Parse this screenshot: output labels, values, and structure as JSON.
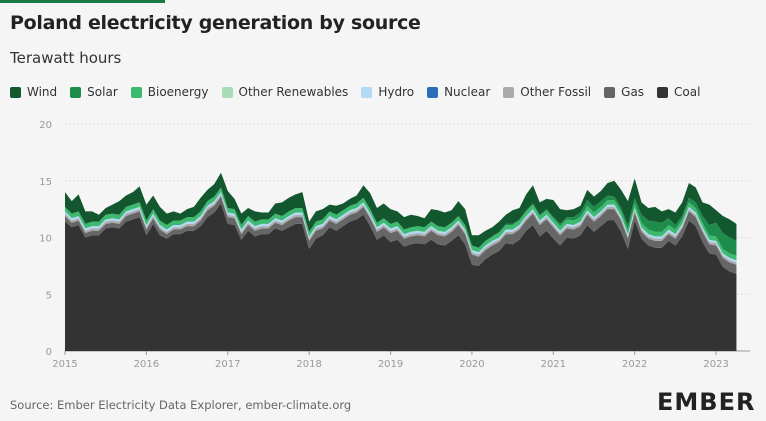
{
  "title": "Poland electricity generation by source",
  "subtitle": "Terawatt hours",
  "source": "Source: Ember Electricity Data Explorer, ember-climate.org",
  "logo": "EMBER",
  "chart_data": {
    "type": "area",
    "stacked": true,
    "title": "Poland electricity generation by source",
    "ylabel": "Terawatt hours",
    "ylim": [
      0,
      20
    ],
    "yticks": [
      0,
      5,
      10,
      15,
      20
    ],
    "xlim": [
      "2015-01",
      "2023-06"
    ],
    "xticks": [
      "2015",
      "2016",
      "2017",
      "2018",
      "2019",
      "2020",
      "2021",
      "2022",
      "2023"
    ],
    "grid": "horizontal",
    "legend_position": "top-left",
    "x_start": "2015-01",
    "series": [
      {
        "name": "Coal",
        "color": "#333333",
        "values": [
          11.4,
          10.9,
          11.1,
          10.0,
          10.2,
          10.2,
          10.8,
          10.9,
          10.8,
          11.4,
          11.6,
          11.8,
          10.2,
          11.2,
          10.2,
          9.9,
          10.3,
          10.3,
          10.6,
          10.6,
          11.0,
          11.8,
          12.2,
          13.0,
          11.2,
          11.1,
          9.8,
          10.6,
          10.1,
          10.3,
          10.3,
          10.8,
          10.6,
          10.9,
          11.2,
          11.2,
          9.0,
          9.9,
          10.2,
          10.9,
          10.6,
          11.0,
          11.4,
          11.6,
          12.0,
          11.0,
          9.8,
          10.2,
          9.6,
          9.8,
          9.2,
          9.4,
          9.5,
          9.4,
          9.8,
          9.4,
          9.3,
          9.7,
          10.2,
          9.4,
          7.6,
          7.5,
          8.1,
          8.5,
          8.8,
          9.5,
          9.4,
          9.8,
          10.6,
          11.1,
          10.1,
          10.6,
          9.9,
          9.3,
          10.0,
          9.9,
          10.2,
          11.1,
          10.5,
          11.0,
          11.5,
          11.5,
          10.5,
          9.0,
          11.5,
          9.9,
          9.3,
          9.1,
          9.1,
          9.7,
          9.3,
          10.1,
          11.5,
          11.0,
          9.6,
          8.6,
          8.5,
          7.4,
          7.0,
          6.8
        ]
      },
      {
        "name": "Gas",
        "color": "#666666",
        "values": [
          0.5,
          0.4,
          0.4,
          0.4,
          0.4,
          0.4,
          0.4,
          0.4,
          0.4,
          0.5,
          0.5,
          0.5,
          0.5,
          0.5,
          0.5,
          0.4,
          0.4,
          0.4,
          0.4,
          0.4,
          0.5,
          0.6,
          0.6,
          0.6,
          0.6,
          0.6,
          0.5,
          0.5,
          0.5,
          0.5,
          0.5,
          0.5,
          0.5,
          0.6,
          0.6,
          0.6,
          0.7,
          0.7,
          0.6,
          0.6,
          0.6,
          0.6,
          0.6,
          0.6,
          0.7,
          0.7,
          0.7,
          0.7,
          0.8,
          0.8,
          0.7,
          0.7,
          0.7,
          0.7,
          0.8,
          0.8,
          0.8,
          0.8,
          0.9,
          0.9,
          0.9,
          0.8,
          0.8,
          0.8,
          0.8,
          0.8,
          0.9,
          0.9,
          0.9,
          1.0,
          1.0,
          1.0,
          1.0,
          0.9,
          0.8,
          0.8,
          0.8,
          0.9,
          0.9,
          0.9,
          1.0,
          1.0,
          1.0,
          0.9,
          0.7,
          0.6,
          0.6,
          0.6,
          0.6,
          0.6,
          0.6,
          0.7,
          0.8,
          0.8,
          0.9,
          0.8,
          0.8,
          0.8,
          0.8,
          0.8
        ]
      },
      {
        "name": "Other Fossil",
        "color": "#aaaaaa",
        "values": [
          0.2,
          0.2,
          0.2,
          0.2,
          0.2,
          0.2,
          0.2,
          0.2,
          0.2,
          0.2,
          0.2,
          0.2,
          0.2,
          0.2,
          0.2,
          0.2,
          0.2,
          0.2,
          0.2,
          0.2,
          0.2,
          0.2,
          0.2,
          0.2,
          0.2,
          0.2,
          0.2,
          0.2,
          0.2,
          0.2,
          0.2,
          0.2,
          0.2,
          0.2,
          0.2,
          0.2,
          0.2,
          0.2,
          0.2,
          0.2,
          0.2,
          0.2,
          0.2,
          0.2,
          0.2,
          0.2,
          0.2,
          0.2,
          0.2,
          0.2,
          0.2,
          0.2,
          0.2,
          0.2,
          0.2,
          0.2,
          0.2,
          0.2,
          0.2,
          0.2,
          0.2,
          0.2,
          0.2,
          0.2,
          0.2,
          0.2,
          0.2,
          0.2,
          0.2,
          0.2,
          0.2,
          0.2,
          0.2,
          0.2,
          0.2,
          0.2,
          0.2,
          0.2,
          0.2,
          0.2,
          0.2,
          0.2,
          0.2,
          0.2,
          0.2,
          0.2,
          0.2,
          0.2,
          0.2,
          0.2,
          0.2,
          0.2,
          0.2,
          0.2,
          0.2,
          0.2,
          0.2,
          0.2,
          0.2,
          0.2
        ]
      },
      {
        "name": "Nuclear",
        "color": "#2a6ebb",
        "values": [
          0,
          0,
          0,
          0,
          0,
          0,
          0,
          0,
          0,
          0,
          0,
          0,
          0,
          0,
          0,
          0,
          0,
          0,
          0,
          0,
          0,
          0,
          0,
          0,
          0,
          0,
          0,
          0,
          0,
          0,
          0,
          0,
          0,
          0,
          0,
          0,
          0,
          0,
          0,
          0,
          0,
          0,
          0,
          0,
          0,
          0,
          0,
          0,
          0,
          0,
          0,
          0,
          0,
          0,
          0,
          0,
          0,
          0,
          0,
          0,
          0,
          0,
          0,
          0,
          0,
          0,
          0,
          0,
          0,
          0,
          0,
          0,
          0,
          0,
          0,
          0,
          0,
          0,
          0,
          0,
          0,
          0,
          0,
          0,
          0,
          0,
          0,
          0,
          0,
          0,
          0,
          0,
          0,
          0,
          0,
          0,
          0,
          0,
          0,
          0
        ]
      },
      {
        "name": "Hydro",
        "color": "#b3d9f5",
        "values": [
          0.2,
          0.2,
          0.2,
          0.2,
          0.2,
          0.2,
          0.2,
          0.2,
          0.2,
          0.2,
          0.2,
          0.2,
          0.2,
          0.2,
          0.2,
          0.2,
          0.2,
          0.2,
          0.2,
          0.2,
          0.2,
          0.2,
          0.2,
          0.2,
          0.2,
          0.2,
          0.2,
          0.2,
          0.2,
          0.2,
          0.2,
          0.2,
          0.2,
          0.2,
          0.2,
          0.2,
          0.2,
          0.2,
          0.2,
          0.2,
          0.2,
          0.2,
          0.2,
          0.2,
          0.2,
          0.2,
          0.2,
          0.2,
          0.2,
          0.2,
          0.2,
          0.2,
          0.2,
          0.2,
          0.2,
          0.2,
          0.2,
          0.2,
          0.2,
          0.2,
          0.2,
          0.2,
          0.2,
          0.2,
          0.2,
          0.2,
          0.2,
          0.2,
          0.2,
          0.2,
          0.2,
          0.2,
          0.2,
          0.2,
          0.2,
          0.2,
          0.2,
          0.2,
          0.2,
          0.2,
          0.2,
          0.2,
          0.2,
          0.2,
          0.2,
          0.2,
          0.2,
          0.2,
          0.2,
          0.2,
          0.2,
          0.2,
          0.2,
          0.2,
          0.2,
          0.2,
          0.2,
          0.2,
          0.2,
          0.2
        ]
      },
      {
        "name": "Other Renewables",
        "color": "#a8dcb9",
        "values": [
          0,
          0,
          0,
          0,
          0,
          0,
          0,
          0,
          0,
          0,
          0,
          0,
          0,
          0,
          0,
          0,
          0,
          0,
          0,
          0,
          0,
          0,
          0,
          0,
          0,
          0,
          0,
          0,
          0,
          0,
          0,
          0,
          0,
          0,
          0,
          0,
          0,
          0,
          0,
          0,
          0,
          0,
          0,
          0,
          0,
          0,
          0,
          0,
          0,
          0,
          0,
          0,
          0,
          0,
          0,
          0,
          0,
          0,
          0,
          0,
          0,
          0,
          0,
          0,
          0,
          0,
          0,
          0,
          0,
          0,
          0,
          0,
          0,
          0,
          0,
          0,
          0,
          0,
          0,
          0,
          0,
          0,
          0,
          0,
          0,
          0,
          0,
          0,
          0,
          0,
          0,
          0,
          0,
          0,
          0,
          0,
          0,
          0,
          0,
          0
        ]
      },
      {
        "name": "Bioenergy",
        "color": "#3dba6f",
        "values": [
          0.4,
          0.4,
          0.4,
          0.4,
          0.4,
          0.4,
          0.4,
          0.4,
          0.4,
          0.4,
          0.4,
          0.4,
          0.4,
          0.4,
          0.4,
          0.4,
          0.4,
          0.4,
          0.4,
          0.4,
          0.4,
          0.4,
          0.4,
          0.4,
          0.4,
          0.4,
          0.4,
          0.4,
          0.4,
          0.4,
          0.4,
          0.4,
          0.4,
          0.4,
          0.4,
          0.4,
          0.4,
          0.4,
          0.4,
          0.4,
          0.4,
          0.4,
          0.4,
          0.4,
          0.4,
          0.4,
          0.4,
          0.4,
          0.4,
          0.4,
          0.4,
          0.4,
          0.4,
          0.4,
          0.4,
          0.4,
          0.4,
          0.4,
          0.4,
          0.4,
          0.4,
          0.4,
          0.4,
          0.4,
          0.4,
          0.4,
          0.4,
          0.4,
          0.4,
          0.4,
          0.4,
          0.4,
          0.4,
          0.4,
          0.4,
          0.4,
          0.4,
          0.4,
          0.4,
          0.4,
          0.4,
          0.4,
          0.4,
          0.4,
          0.4,
          0.4,
          0.4,
          0.4,
          0.4,
          0.4,
          0.4,
          0.4,
          0.4,
          0.4,
          0.4,
          0.4,
          0.4,
          0.4,
          0.4,
          0.4
        ]
      },
      {
        "name": "Solar",
        "color": "#1e8c4a",
        "values": [
          0,
          0,
          0,
          0,
          0,
          0,
          0,
          0,
          0,
          0,
          0,
          0,
          0,
          0,
          0,
          0,
          0,
          0,
          0,
          0,
          0,
          0,
          0,
          0,
          0,
          0,
          0,
          0,
          0,
          0,
          0,
          0,
          0,
          0,
          0,
          0,
          0,
          0,
          0,
          0,
          0,
          0,
          0,
          0,
          0,
          0,
          0,
          0,
          0,
          0,
          0,
          0,
          0,
          0,
          0,
          0,
          0,
          0,
          0,
          0,
          0,
          0,
          0,
          0,
          0.1,
          0.1,
          0.1,
          0.1,
          0.1,
          0.1,
          0.1,
          0.1,
          0.1,
          0.2,
          0.2,
          0.3,
          0.4,
          0.5,
          0.5,
          0.5,
          0.4,
          0.3,
          0.3,
          0.4,
          0.5,
          0.7,
          0.8,
          0.9,
          0.8,
          0.6,
          0.4,
          0.3,
          0.4,
          0.5,
          0.6,
          0.9,
          1.2,
          1.4,
          1.4,
          1.3
        ]
      },
      {
        "name": "Wind",
        "color": "#13572f",
        "values": [
          1.3,
          1.1,
          1.5,
          1.1,
          0.9,
          0.6,
          0.6,
          0.8,
          1.2,
          1.0,
          1.1,
          1.4,
          1.4,
          1.2,
          1.2,
          1.0,
          0.8,
          0.6,
          0.7,
          0.9,
          1.2,
          1.0,
          1.1,
          1.3,
          1.5,
          0.9,
          1.0,
          0.7,
          0.9,
          0.6,
          0.6,
          0.9,
          1.2,
          1.2,
          1.2,
          1.4,
          0.9,
          0.9,
          0.9,
          0.6,
          0.8,
          0.6,
          0.6,
          0.7,
          1.1,
          1.4,
          1.3,
          1.3,
          1.3,
          0.9,
          1.1,
          1.1,
          0.9,
          0.8,
          1.1,
          1.4,
          1.3,
          1.1,
          1.3,
          1.4,
          0.9,
          1.1,
          0.9,
          0.8,
          0.9,
          0.8,
          1.2,
          1.0,
          1.4,
          1.6,
          1.1,
          0.9,
          1.5,
          1.3,
          0.6,
          0.7,
          0.6,
          0.9,
          0.9,
          0.9,
          1.1,
          1.4,
          1.6,
          2.1,
          1.7,
          1.1,
          1.1,
          1.3,
          1.0,
          0.8,
          1.1,
          1.2,
          1.3,
          1.3,
          1.2,
          1.8,
          1.1,
          1.5,
          1.6,
          1.5
        ]
      }
    ]
  }
}
